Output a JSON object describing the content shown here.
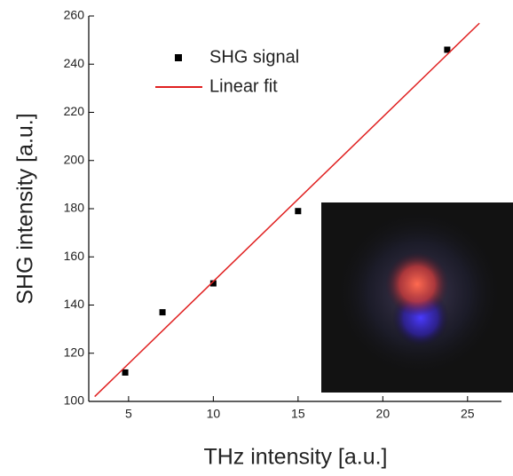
{
  "chart_data": {
    "type": "scatter",
    "x_label": "THz intensity [a.u.]",
    "y_label": "SHG intensity [a.u.]",
    "xlim": [
      2.65,
      27
    ],
    "xticks": [
      5,
      10,
      15,
      20,
      25
    ],
    "ylim": [
      100,
      260
    ],
    "yticks": [
      100,
      120,
      140,
      160,
      180,
      200,
      220,
      240,
      260
    ],
    "series": [
      {
        "name": "SHG signal",
        "type": "scatter",
        "color": "#000000",
        "x": [
          4.8,
          7,
          10,
          15,
          23.8
        ],
        "values": [
          112,
          137,
          149,
          179,
          246
        ]
      },
      {
        "name": "Linear fit",
        "type": "line",
        "color": "#e02020",
        "x": [
          3,
          25.7
        ],
        "values": [
          102,
          257
        ]
      }
    ]
  }
}
